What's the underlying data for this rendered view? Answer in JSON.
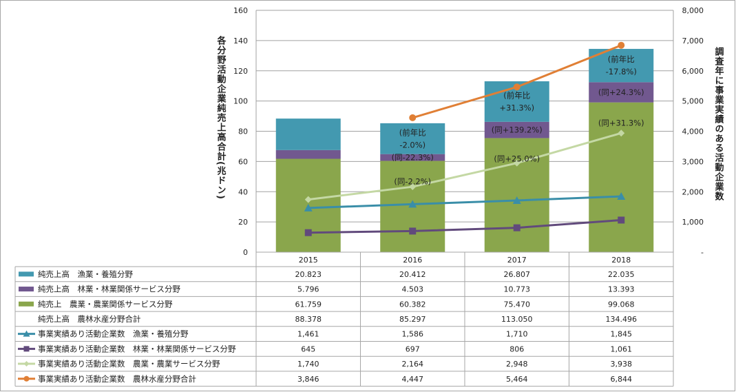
{
  "chart_data": {
    "type": "bar",
    "stacked": true,
    "categories": [
      "2015",
      "2016",
      "2017",
      "2018"
    ],
    "y_left": {
      "label": "各分野活動企業純売上高合計(兆ドン)",
      "range": [
        0,
        160
      ],
      "ticks": [
        "0",
        "20",
        "40",
        "60",
        "80",
        "100",
        "120",
        "140",
        "160"
      ]
    },
    "y_right": {
      "label": "調査年に事業実績のある活動企業数",
      "range": [
        0,
        8000
      ],
      "ticks": [
        "-",
        "1,000",
        "2,000",
        "3,000",
        "4,000",
        "5,000",
        "6,000",
        "7,000",
        "8,000"
      ]
    },
    "grid": true,
    "legend_placement": "data-table-bottom",
    "series": [
      {
        "name": "純売上高　漁業・養殖分野",
        "kind": "bar",
        "stack_order": 3,
        "axis": "left",
        "color": "#4399b0",
        "values": [
          20.823,
          20.412,
          26.807,
          22.035
        ],
        "labels": [
          "20.823",
          "20.412",
          "26.807",
          "22.035"
        ]
      },
      {
        "name": "純売上高　林業・林業関係サービス分野",
        "kind": "bar",
        "stack_order": 2,
        "axis": "left",
        "color": "#71588f",
        "values": [
          5.796,
          4.503,
          10.773,
          13.393
        ],
        "labels": [
          "5.796",
          "4.503",
          "10.773",
          "13.393"
        ]
      },
      {
        "name": "純売上　農業・農業関係サービス分野",
        "kind": "bar",
        "stack_order": 1,
        "axis": "left",
        "color": "#8aa64c",
        "values": [
          61.759,
          60.382,
          75.47,
          99.068
        ],
        "labels": [
          "61.759",
          "60.382",
          "75.470",
          "99.068"
        ]
      },
      {
        "name": "純売上高　農林水産分野合計",
        "kind": "none",
        "axis": "left",
        "color": "",
        "values": [
          88.378,
          85.297,
          113.05,
          134.496
        ],
        "labels": [
          "88.378",
          "85.297",
          "113.050",
          "134.496"
        ]
      },
      {
        "name": "事業実績あり活動企業数　漁業・養殖分野",
        "kind": "line",
        "marker": "triangle",
        "axis": "right",
        "color": "#3a8ea8",
        "values": [
          1461,
          1586,
          1710,
          1845
        ],
        "labels": [
          "1,461",
          "1,586",
          "1,710",
          "1,845"
        ]
      },
      {
        "name": "事業実績あり活動企業数　林業・林業関係サービス分野",
        "kind": "line",
        "marker": "square",
        "axis": "right",
        "color": "#614a7c",
        "values": [
          645,
          697,
          806,
          1061
        ],
        "labels": [
          "645",
          "697",
          "806",
          "1,061"
        ]
      },
      {
        "name": "事業実績あり活動企業数　農業・農業サービス分野",
        "kind": "line",
        "marker": "diamond",
        "axis": "right",
        "color": "#c4d8a4",
        "values": [
          1740,
          2164,
          2948,
          3938
        ],
        "labels": [
          "1,740",
          "2,164",
          "2,948",
          "3,938"
        ]
      },
      {
        "name": "事業実績あり活動企業数　農林水産分野合計",
        "kind": "line",
        "marker": "circle",
        "axis": "right",
        "color": "#e07f35",
        "values": [
          null,
          4447,
          5464,
          6844
        ],
        "labels": [
          "3,846",
          "4,447",
          "5,464",
          "6,844"
        ]
      }
    ],
    "annotations": [
      {
        "category": "2016",
        "series": 0,
        "lines": [
          "(前年比",
          "-2.0%)"
        ]
      },
      {
        "category": "2016",
        "series": 1,
        "lines": [
          "(同-22.3%)"
        ]
      },
      {
        "category": "2016",
        "series": 2,
        "lines": [
          "(同-2.2%)"
        ]
      },
      {
        "category": "2017",
        "series": 0,
        "lines": [
          "(前年比",
          "+31.3%)"
        ]
      },
      {
        "category": "2017",
        "series": 1,
        "lines": [
          "(同+139.2%)"
        ]
      },
      {
        "category": "2017",
        "series": 2,
        "lines": [
          "(同+25.0%)"
        ]
      },
      {
        "category": "2018",
        "series": 0,
        "lines": [
          "(前年比",
          "-17.8%)"
        ]
      },
      {
        "category": "2018",
        "series": 1,
        "lines": [
          "(同+24.3%)"
        ]
      },
      {
        "category": "2018",
        "series": 2,
        "lines": [
          "(同+31.3%)"
        ]
      }
    ]
  }
}
